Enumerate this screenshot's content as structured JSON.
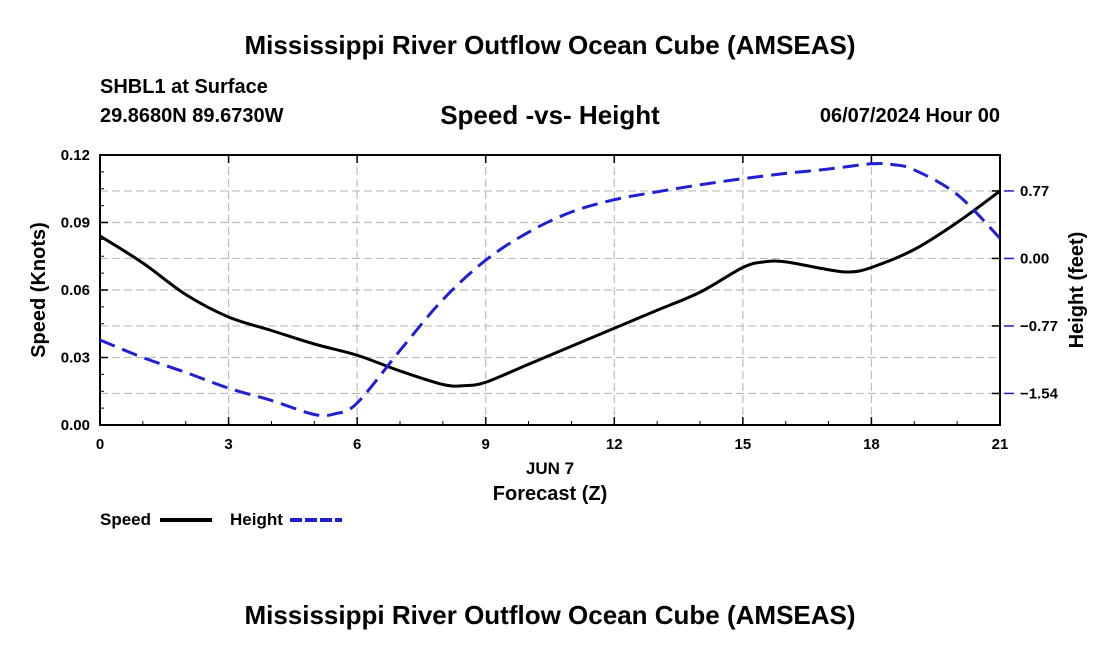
{
  "header": {
    "title": "Mississippi River Outflow Ocean Cube (AMSEAS)",
    "station": "SHBL1 at Surface",
    "coordinates": "29.8680N  89.6730W",
    "subtitle": "Speed -vs- Height",
    "datetime": "06/07/2024 Hour 00"
  },
  "footer": {
    "title": "Mississippi River Outflow Ocean Cube (AMSEAS)"
  },
  "chart_data": {
    "type": "line",
    "title": "Speed -vs- Height",
    "xlabel": "Forecast (Z)",
    "xdate_label": "JUN 7",
    "ylabel": "Speed (Knots)",
    "y2label": "Height (feet)",
    "xlim": [
      0,
      21
    ],
    "ylim": [
      0,
      0.12
    ],
    "y2lim": [
      -1.9,
      1.18
    ],
    "xticks": [
      0,
      3,
      6,
      9,
      12,
      15,
      18,
      21
    ],
    "xtick_labels": [
      "0",
      "3",
      "6",
      "9",
      "12",
      "15",
      "18",
      "21"
    ],
    "yticks": [
      0,
      0.03,
      0.06,
      0.09,
      0.12
    ],
    "ytick_labels": [
      "0.00",
      "0.03",
      "0.06",
      "0.09",
      "0.12"
    ],
    "y2ticks": [
      -1.54,
      -0.77,
      0.0,
      0.77
    ],
    "y2tick_labels": [
      "−1.54",
      "−0.77",
      "0.00",
      "0.77"
    ],
    "grid": true,
    "legend_position": "bottom-left",
    "series": [
      {
        "name": "Speed",
        "axis": "left",
        "style": "solid",
        "color": "#000000",
        "x": [
          0,
          1,
          2,
          3,
          4,
          5,
          6,
          7,
          8,
          8.5,
          9,
          10,
          11,
          12,
          13,
          14,
          15,
          15.5,
          16,
          17,
          17.5,
          18,
          19,
          20,
          21
        ],
        "values": [
          0.084,
          0.072,
          0.058,
          0.048,
          0.042,
          0.036,
          0.031,
          0.024,
          0.018,
          0.0175,
          0.019,
          0.027,
          0.035,
          0.043,
          0.051,
          0.059,
          0.07,
          0.0725,
          0.0725,
          0.069,
          0.068,
          0.07,
          0.078,
          0.09,
          0.104
        ]
      },
      {
        "name": "Height",
        "axis": "right",
        "style": "dashed",
        "color": "#1f1fd6",
        "x": [
          0,
          1,
          2,
          3,
          4,
          5,
          5.5,
          6,
          7,
          8,
          9,
          10,
          11,
          12,
          13,
          14,
          15,
          16,
          17,
          18,
          18.5,
          19,
          20,
          21
        ],
        "values": [
          -0.93,
          -1.13,
          -1.3,
          -1.48,
          -1.62,
          -1.78,
          -1.77,
          -1.65,
          -1.05,
          -0.47,
          -0.02,
          0.3,
          0.53,
          0.67,
          0.76,
          0.84,
          0.91,
          0.97,
          1.02,
          1.08,
          1.07,
          1.01,
          0.73,
          0.23
        ]
      }
    ]
  }
}
